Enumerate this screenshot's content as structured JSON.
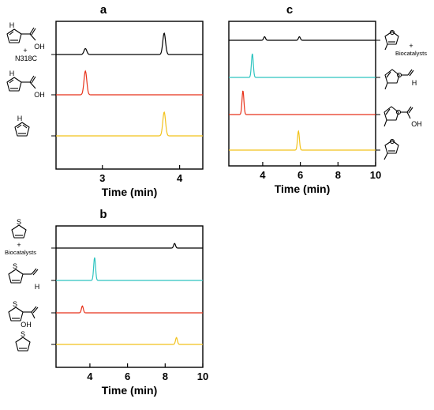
{
  "chart_data": [
    {
      "panel": "a",
      "type": "line",
      "xlabel": "Time (min)",
      "ylabel": "",
      "xlim": [
        2.4,
        4.3
      ],
      "xticks": [
        3,
        4
      ],
      "grid": false,
      "legend": "none",
      "series": [
        {
          "trace": "pyrrole-2-carboxylic acid + N318C",
          "color": "#000000",
          "peaks": [
            {
              "x": 2.78,
              "height": 0.25
            },
            {
              "x": 3.8,
              "height": 0.9
            }
          ]
        },
        {
          "trace": "pyrrole-2-carboxylic acid",
          "color": "#e8321a",
          "peaks": [
            {
              "x": 2.78,
              "height": 1.0
            }
          ]
        },
        {
          "trace": "pyrrole",
          "color": "#f2c21b",
          "peaks": [
            {
              "x": 3.8,
              "height": 1.0
            }
          ]
        }
      ]
    },
    {
      "panel": "b",
      "type": "line",
      "xlabel": "Time (min)",
      "ylabel": "",
      "xlim": [
        2.2,
        10
      ],
      "xticks": [
        4,
        6,
        8,
        10
      ],
      "grid": false,
      "legend": "none",
      "series": [
        {
          "trace": "thiophene + biocatalysts",
          "color": "#000000",
          "peaks": [
            {
              "x": 8.5,
              "height": 0.2
            }
          ]
        },
        {
          "trace": "thiophene-2-carbaldehyde",
          "color": "#2ec4c0",
          "peaks": [
            {
              "x": 4.25,
              "height": 1.0
            }
          ]
        },
        {
          "trace": "thiophene-2-carboxylic acid",
          "color": "#e8321a",
          "peaks": [
            {
              "x": 3.6,
              "height": 0.3
            }
          ]
        },
        {
          "trace": "thiophene",
          "color": "#f2c21b",
          "peaks": [
            {
              "x": 8.6,
              "height": 0.3
            }
          ]
        }
      ]
    },
    {
      "panel": "c",
      "type": "line",
      "xlabel": "Time (min)",
      "ylabel": "",
      "xlim": [
        2.2,
        10
      ],
      "xticks": [
        4,
        6,
        8,
        10
      ],
      "grid": false,
      "legend": "none",
      "series": [
        {
          "trace": "3-methylfuran + biocatalysts",
          "color": "#000000",
          "peaks": [
            {
              "x": 4.1,
              "height": 0.15
            },
            {
              "x": 5.95,
              "height": 0.15
            }
          ]
        },
        {
          "trace": "3-methylfuran-2-carbaldehyde",
          "color": "#2ec4c0",
          "peaks": [
            {
              "x": 3.45,
              "height": 1.0
            }
          ]
        },
        {
          "trace": "3-methylfuran-2-carboxylic acid",
          "color": "#e8321a",
          "peaks": [
            {
              "x": 2.95,
              "height": 1.0
            }
          ]
        },
        {
          "trace": "3-methylfuran",
          "color": "#f2c21b",
          "peaks": [
            {
              "x": 5.9,
              "height": 0.8
            }
          ]
        }
      ]
    }
  ],
  "panels": {
    "a": {
      "letter": "a",
      "enzyme": "N318C",
      "plus": "+",
      "h": "H",
      "oh": "OH"
    },
    "b": {
      "letter": "b",
      "extra": "Biocatalysts",
      "plus": "+",
      "s": "S",
      "h": "H",
      "oh": "OH"
    },
    "c": {
      "letter": "c",
      "extra": "Biocatalysts",
      "plus": "+",
      "h": "H",
      "oh": "OH"
    }
  }
}
